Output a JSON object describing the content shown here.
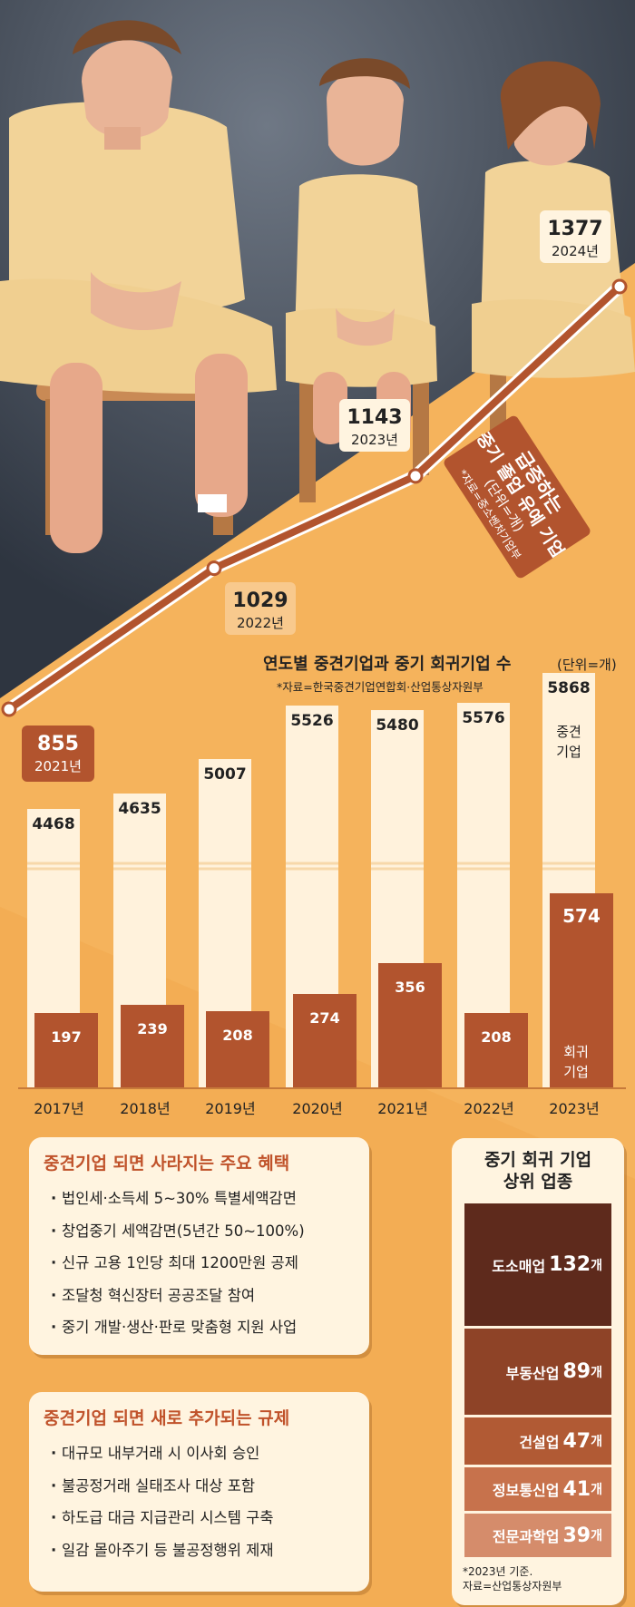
{
  "chart_data": [
    {
      "type": "line",
      "title_lines": [
        "급증하는",
        "중기 졸업 유예 기업",
        "(단위=개)",
        "*자료=중소벤처기업부"
      ],
      "categories": [
        "2021년",
        "2022년",
        "2023년",
        "2024년"
      ],
      "values": [
        855,
        1029,
        1143,
        1377
      ]
    },
    {
      "type": "bar",
      "title": "연도별 중견기업과 중기 회귀기업 수",
      "unit": "(단위=개)",
      "source": "*자료=한국중견기업연합회·산업통상자원부",
      "categories": [
        "2017년",
        "2018년",
        "2019년",
        "2020년",
        "2021년",
        "2022년",
        "2023년"
      ],
      "series": [
        {
          "name": "중견 기업",
          "values": [
            4468,
            4635,
            5007,
            5526,
            5480,
            5576,
            5868
          ]
        },
        {
          "name": "회귀 기업",
          "values": [
            197,
            239,
            208,
            274,
            356,
            208,
            574
          ]
        }
      ],
      "series_labels": {
        "mid": [
          "중견",
          "기업"
        ],
        "back": [
          "회귀",
          "기업"
        ]
      }
    }
  ],
  "benefits": {
    "title": "중견기업 되면 사라지는 주요 혜택",
    "items": [
      "법인세·소득세 5~30% 특별세액감면",
      "창업중기 세액감면(5년간 50~100%)",
      "신규 고용 1인당 최대 1200만원 공제",
      "조달청 혁신장터 공공조달 참여",
      "중기 개발·생산·판로 맞춤형 지원 사업"
    ]
  },
  "regulations": {
    "title": "중견기업 되면 새로 추가되는 규제",
    "items": [
      "대규모 내부거래 시 이사회 승인",
      "불공정거래 실태조사 대상 포함",
      "하도급 대금 지급관리 시스템 구축",
      "일감 몰아주기 등 불공정행위 제재"
    ]
  },
  "ranking": {
    "title_lines": [
      "중기 회귀 기업",
      "상위 업종"
    ],
    "unit": "개",
    "items": [
      {
        "name": "도소매업",
        "count": "132",
        "color": "#5e2a1c"
      },
      {
        "name": "부동산업",
        "count": "89",
        "color": "#8e4327"
      },
      {
        "name": "건설업",
        "count": "47",
        "color": "#b15a34"
      },
      {
        "name": "정보통신업",
        "count": "41",
        "color": "#c7724c"
      },
      {
        "name": "전문과학업",
        "count": "39",
        "color": "#d58c6b"
      }
    ],
    "note_lines": [
      "*2023년 기준.",
      "자료=산업통상자원부"
    ]
  },
  "colors": {
    "background": "#f5b35c",
    "dark_bg": "#414a57",
    "accent": "#b2542e",
    "bar_light": "#fff2dc",
    "card": "#fff4e0"
  }
}
